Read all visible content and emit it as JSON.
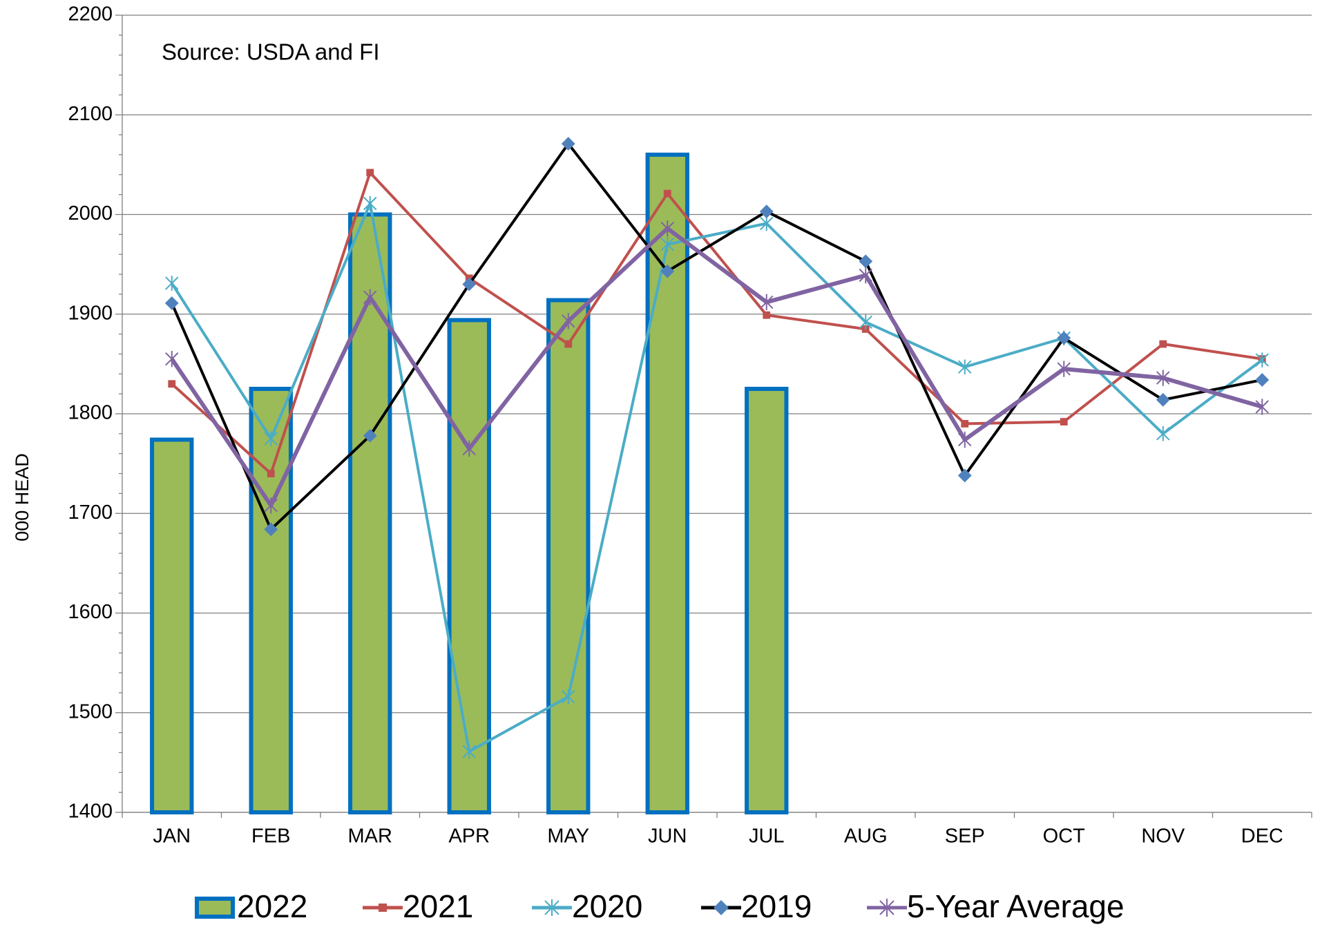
{
  "chart_data": {
    "type": "bar-line",
    "y_label": "000 HEAD",
    "annotation": "Source: USDA and FI",
    "categories": [
      "JAN",
      "FEB",
      "MAR",
      "APR",
      "MAY",
      "JUN",
      "JUL",
      "AUG",
      "SEP",
      "OCT",
      "NOV",
      "DEC"
    ],
    "ylim": [
      1400,
      2200
    ],
    "yticks": [
      1400,
      1500,
      1600,
      1700,
      1800,
      1900,
      2000,
      2100,
      2200
    ],
    "grid": true,
    "series": [
      {
        "name": "2022",
        "type": "bar",
        "color": "#9bbb59",
        "edge_color": "#0070c0",
        "values": [
          1774,
          1825,
          2000,
          1894,
          1914,
          2060,
          1825,
          null,
          null,
          null,
          null,
          null
        ]
      },
      {
        "name": "2021",
        "type": "line",
        "marker": "square",
        "color": "#c0504d",
        "values": [
          1830,
          1740,
          2042,
          1936,
          1870,
          2021,
          1899,
          1885,
          1790,
          1792,
          1870,
          1855
        ]
      },
      {
        "name": "2020",
        "type": "line",
        "marker": "star",
        "color": "#4bacc6",
        "values": [
          1931,
          1775,
          2011,
          1461,
          1516,
          1970,
          1991,
          1892,
          1847,
          1876,
          1780,
          1854
        ]
      },
      {
        "name": "2019",
        "type": "line",
        "marker": "diamond",
        "color": "#000000",
        "marker_color": "#4f81bd",
        "values": [
          1911,
          1684,
          1778,
          1930,
          2071,
          1943,
          2003,
          1953,
          1738,
          1876,
          1814,
          1834
        ]
      },
      {
        "name": "5-Year Average",
        "type": "line",
        "marker": "asterisk",
        "color": "#8064a2",
        "values": [
          1855,
          1708,
          1917,
          1765,
          1893,
          1986,
          1912,
          1939,
          1774,
          1845,
          1836,
          1807
        ]
      }
    ]
  }
}
